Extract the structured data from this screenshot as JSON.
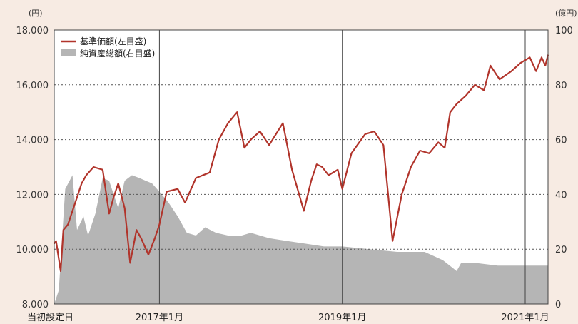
{
  "chart_data": {
    "type": "line",
    "title": "",
    "left_axis": {
      "unit": "(円)",
      "ticks": [
        "18,000",
        "16,000",
        "14,000",
        "12,000",
        "10,000",
        "8,000"
      ],
      "tick_values": [
        18000,
        16000,
        14000,
        12000,
        10000,
        8000
      ],
      "range": [
        8000,
        18000
      ]
    },
    "right_axis": {
      "unit": "(億円)",
      "ticks": [
        "100",
        "80",
        "60",
        "40",
        "20",
        "0"
      ],
      "tick_values": [
        100,
        80,
        60,
        40,
        20,
        0
      ],
      "range": [
        0,
        100
      ]
    },
    "x_axis": {
      "labels": [
        "当初設定日",
        "2017年1月",
        "2019年1月",
        "2021年1月"
      ],
      "label_dates": [
        2015.85,
        2017.0,
        2019.0,
        2021.0
      ],
      "range": [
        2015.85,
        2021.25
      ]
    },
    "grid": true,
    "legend_position": "top-left",
    "legend": [
      {
        "label": "基準価額(左目盛)",
        "type": "line",
        "color": "#b1342b"
      },
      {
        "label": "純資産総額(右目盛)",
        "type": "area",
        "color": "#b5b5b5"
      }
    ],
    "series": [
      {
        "name": "基準価額(左目盛)",
        "axis": "left",
        "color": "#b1342b",
        "x": [
          2015.85,
          2015.87,
          2015.92,
          2015.95,
          2016.0,
          2016.08,
          2016.15,
          2016.2,
          2016.28,
          2016.38,
          2016.45,
          2016.5,
          2016.55,
          2016.62,
          2016.68,
          2016.75,
          2016.8,
          2016.88,
          2016.95,
          2017.0,
          2017.08,
          2017.2,
          2017.28,
          2017.4,
          2017.55,
          2017.65,
          2017.75,
          2017.85,
          2017.93,
          2018.0,
          2018.1,
          2018.2,
          2018.35,
          2018.45,
          2018.58,
          2018.66,
          2018.72,
          2018.78,
          2018.85,
          2018.95,
          2019.0,
          2019.1,
          2019.25,
          2019.35,
          2019.45,
          2019.55,
          2019.65,
          2019.75,
          2019.85,
          2019.95,
          2020.05,
          2020.12,
          2020.18,
          2020.25,
          2020.35,
          2020.45,
          2020.55,
          2020.62,
          2020.72,
          2020.85,
          2020.95,
          2021.05,
          2021.12,
          2021.18,
          2021.22,
          2021.25
        ],
        "values": [
          10200,
          10300,
          9200,
          10700,
          10900,
          11700,
          12400,
          12700,
          13000,
          12900,
          11300,
          11900,
          12400,
          11500,
          9500,
          10700,
          10400,
          9800,
          10400,
          10900,
          12100,
          12200,
          11700,
          12600,
          12800,
          14000,
          14600,
          15000,
          13700,
          14000,
          14300,
          13800,
          14600,
          12900,
          11400,
          12500,
          13100,
          13000,
          12700,
          12900,
          12200,
          13500,
          14200,
          14300,
          13800,
          10300,
          12000,
          13000,
          13600,
          13500,
          13900,
          13700,
          15000,
          15300,
          15600,
          16000,
          15800,
          16700,
          16200,
          16500,
          16800,
          17000,
          16500,
          17000,
          16700,
          17100
        ]
      },
      {
        "name": "純資産総額(右目盛)",
        "axis": "right",
        "color": "#b5b5b5",
        "x": [
          2015.85,
          2015.9,
          2015.97,
          2016.05,
          2016.1,
          2016.17,
          2016.22,
          2016.3,
          2016.38,
          2016.45,
          2016.55,
          2016.62,
          2016.7,
          2016.78,
          2016.85,
          2016.92,
          2017.0,
          2017.1,
          2017.2,
          2017.3,
          2017.4,
          2017.5,
          2017.62,
          2017.75,
          2017.9,
          2018.0,
          2018.2,
          2018.4,
          2018.6,
          2018.8,
          2019.0,
          2019.3,
          2019.6,
          2019.9,
          2020.1,
          2020.25,
          2020.3,
          2020.45,
          2020.7,
          2021.0,
          2021.25
        ],
        "values": [
          0,
          5,
          42,
          47,
          27,
          32,
          25,
          33,
          46,
          45,
          35,
          45,
          47,
          46,
          45,
          44,
          41,
          37,
          32,
          26,
          25,
          28,
          26,
          25,
          25,
          26,
          24,
          23,
          22,
          21,
          21,
          20,
          19,
          19,
          16,
          12,
          15,
          15,
          14,
          14,
          14
        ]
      }
    ]
  }
}
